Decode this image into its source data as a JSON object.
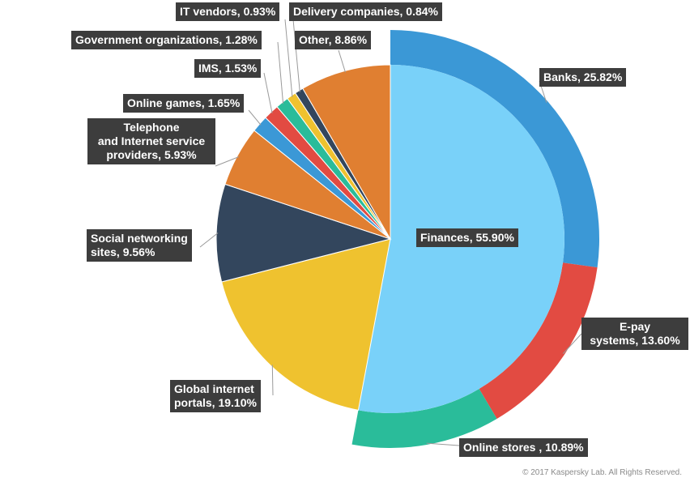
{
  "chart_data": {
    "type": "pie",
    "title": "",
    "slices": [
      {
        "key": "finances",
        "label": "Finances, 55.90%",
        "value": 55.9,
        "color": "#79d1f9"
      },
      {
        "key": "global",
        "label": "Global internet portals, 19.10%",
        "value": 19.1,
        "color": "#efc22f"
      },
      {
        "key": "social",
        "label": "Social networking sites, 9.56%",
        "value": 9.56,
        "color": "#33465d"
      },
      {
        "key": "telephone",
        "label": "Telephone and Internet service providers, 5.93%",
        "value": 5.93,
        "color": "#e07f31"
      },
      {
        "key": "games",
        "label": "Online games, 1.65%",
        "value": 1.65,
        "color": "#3b98d6"
      },
      {
        "key": "ims",
        "label": "IMS, 1.53%",
        "value": 1.53,
        "color": "#e24b42"
      },
      {
        "key": "government",
        "label": "Government organizations, 1.28%",
        "value": 1.28,
        "color": "#2abc9a"
      },
      {
        "key": "itvendors",
        "label": "IT vendors, 0.93%",
        "value": 0.93,
        "color": "#efc22f"
      },
      {
        "key": "delivery",
        "label": "Delivery companies, 0.84%",
        "value": 0.84,
        "color": "#33465d"
      },
      {
        "key": "other",
        "label": "Other, 8.86%",
        "value": 8.86,
        "color": "#e07f31"
      }
    ],
    "sub_slices": [
      {
        "key": "banks",
        "label": "Banks, 25.82%",
        "value": 25.82,
        "color": "#3b98d6"
      },
      {
        "key": "epay",
        "label": "E-pay systems, 13.60%",
        "value": 13.6,
        "color": "#e24b42"
      },
      {
        "key": "stores",
        "label": "Online stores , 10.89%",
        "value": 10.89,
        "color": "#2abc9a"
      }
    ],
    "label_lines": {
      "finances": [
        "Finances, 55.90%"
      ],
      "global": [
        "Global internet",
        "portals, 19.10%"
      ],
      "social": [
        "Social networking",
        "sites, 9.56%"
      ],
      "telephone": [
        "Telephone",
        "and Internet service",
        "providers, 5.93%"
      ],
      "games": [
        "Online games, 1.65%"
      ],
      "ims": [
        "IMS, 1.53%"
      ],
      "government": [
        "Government organizations, 1.28%"
      ],
      "itvendors": [
        "IT vendors, 0.93%"
      ],
      "delivery": [
        "Delivery companies, 0.84%"
      ],
      "other": [
        "Other, 8.86%"
      ],
      "banks": [
        "Banks, 25.82%"
      ],
      "epay": [
        "E-pay",
        "systems, 13.60%"
      ],
      "stores": [
        "Online stores , 10.89%"
      ]
    },
    "legend": "none"
  },
  "footer": {
    "copyright": "© 2017 Kaspersky Lab. All Rights Reserved."
  }
}
